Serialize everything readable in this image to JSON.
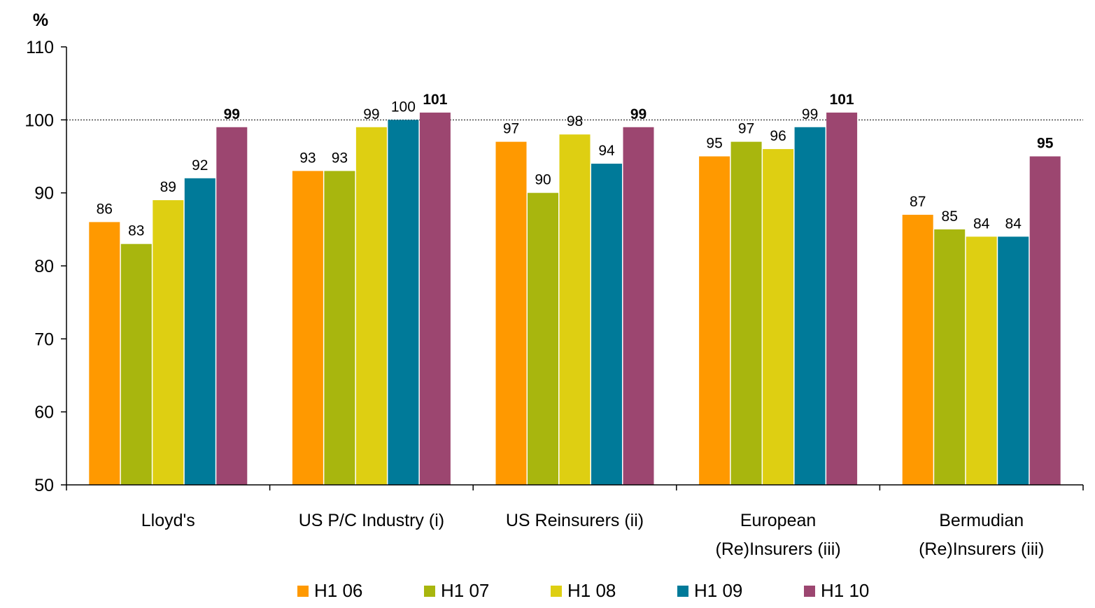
{
  "chart_data": {
    "type": "bar",
    "ylabel": "%",
    "ylim": [
      50,
      110
    ],
    "yticks": [
      50,
      60,
      70,
      80,
      90,
      100,
      110
    ],
    "reference_line": 100,
    "categories": [
      [
        "Lloyd's"
      ],
      [
        "US P/C Industry (i)"
      ],
      [
        "US Reinsurers (ii)"
      ],
      [
        "European",
        "(Re)Insurers (iii)"
      ],
      [
        "Bermudian",
        "(Re)Insurers (iii)"
      ]
    ],
    "series": [
      {
        "name": "H1 06",
        "color": "#FF9900",
        "values": [
          86,
          93,
          97,
          95,
          87
        ]
      },
      {
        "name": "H1 07",
        "color": "#A8B60E",
        "values": [
          83,
          93,
          90,
          97,
          85
        ]
      },
      {
        "name": "H1 08",
        "color": "#DECF12",
        "values": [
          89,
          99,
          98,
          96,
          84
        ]
      },
      {
        "name": "H1 09",
        "color": "#007A99",
        "values": [
          92,
          100,
          94,
          99,
          84
        ]
      },
      {
        "name": "H1 10",
        "color": "#9C4670",
        "values": [
          99,
          101,
          99,
          101,
          95
        ],
        "bold_labels": true
      }
    ],
    "legend_position": "bottom"
  }
}
